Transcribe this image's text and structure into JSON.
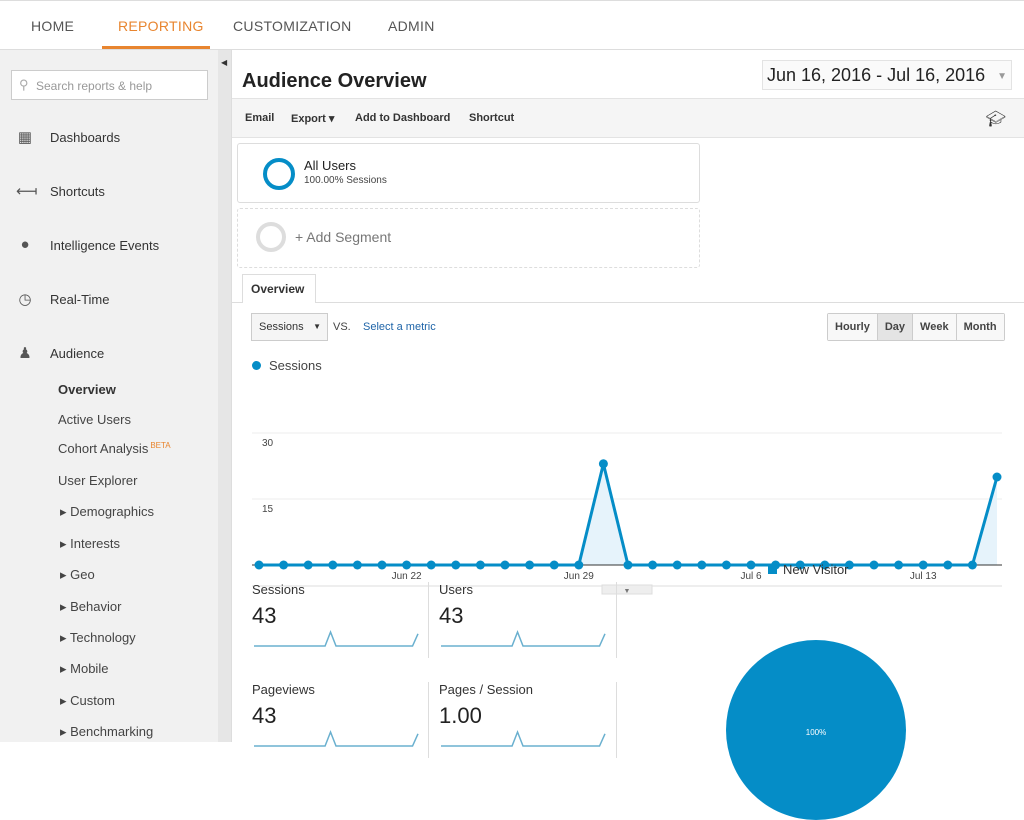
{
  "topnav": {
    "tabs": [
      {
        "label": "HOME"
      },
      {
        "label": "REPORTING",
        "active": true
      },
      {
        "label": "CUSTOMIZATION"
      },
      {
        "label": "ADMIN"
      }
    ]
  },
  "sidebar": {
    "search_placeholder": "Search reports & help",
    "items": [
      {
        "label": "Dashboards",
        "icon": "grid-icon"
      },
      {
        "label": "Shortcuts",
        "icon": "shortcut-arrow-icon"
      },
      {
        "label": "Intelligence Events",
        "icon": "lightbulb-icon"
      },
      {
        "label": "Real-Time",
        "icon": "clock-icon"
      },
      {
        "label": "Audience",
        "icon": "people-icon"
      }
    ],
    "audience_sub": [
      {
        "label": "Overview"
      },
      {
        "label": "Active Users"
      },
      {
        "label": "Cohort Analysis",
        "badge": "BETA"
      },
      {
        "label": "User Explorer"
      }
    ],
    "audience_groups": [
      "Demographics",
      "Interests",
      "Geo",
      "Behavior",
      "Technology",
      "Mobile",
      "Custom",
      "Benchmarking"
    ]
  },
  "header": {
    "title": "Audience Overview",
    "date_range": "Jun 16, 2016 - Jul 16, 2016"
  },
  "toolbar": {
    "email": "Email",
    "export": "Export ▾",
    "add_dashboard": "Add to Dashboard",
    "shortcut": "Shortcut"
  },
  "segments": {
    "name": "All Users",
    "share": "100.00% Sessions",
    "add": "+ Add Segment"
  },
  "overview_tab": "Overview",
  "controls": {
    "metric": "Sessions",
    "vs": "VS.",
    "select_metric": "Select a metric",
    "granularity": [
      "Hourly",
      "Day",
      "Week",
      "Month"
    ],
    "selected": "Day"
  },
  "accent": "#058dc7",
  "chart_data": {
    "type": "area",
    "series": [
      {
        "name": "Sessions",
        "values": [
          0,
          0,
          0,
          0,
          0,
          0,
          0,
          0,
          0,
          0,
          0,
          0,
          0,
          0,
          23,
          0,
          0,
          0,
          0,
          0,
          0,
          0,
          0,
          0,
          0,
          0,
          0,
          0,
          0,
          0,
          20
        ]
      }
    ],
    "x_start": "Jun 16",
    "x_end": "Jul 16",
    "x_tick_labels": [
      "Jun 22",
      "Jun 29",
      "Jul 6",
      "Jul 13"
    ],
    "y_tick_labels": [
      "30",
      "15"
    ],
    "ylim": [
      0,
      30
    ],
    "grid": true,
    "legend": "top-left"
  },
  "metrics": [
    {
      "label": "Sessions",
      "value": "43"
    },
    {
      "label": "Users",
      "value": "43"
    },
    {
      "label": "Pageviews",
      "value": "43"
    },
    {
      "label": "Pages / Session",
      "value": "1.00"
    }
  ],
  "pie": {
    "legend": "New Visitor",
    "label": "100%",
    "share": 100
  }
}
